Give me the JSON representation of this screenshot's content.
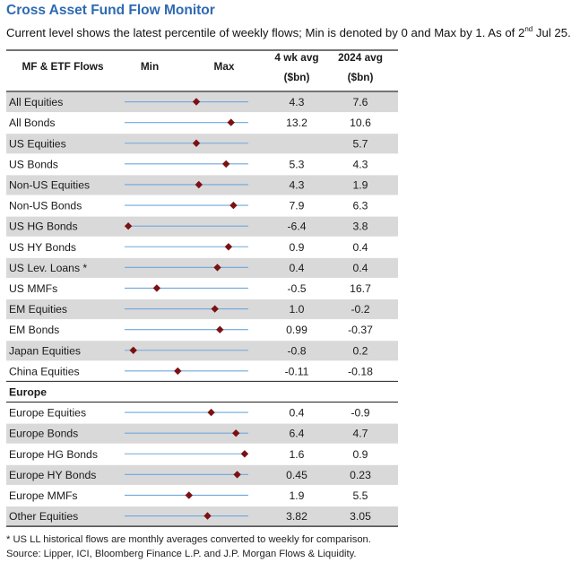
{
  "title": "Cross Asset Fund Flow Monitor",
  "subtitle": {
    "pre": "Current level shows the latest percentile of weekly flows; Min is denoted by 0 and Max by 1. As of 2",
    "sup": "nd",
    "post": " Jul 25."
  },
  "footnotes": [
    "* US LL historical flows are monthly averages converted to weekly for comparison.",
    "Source: Lipper, ICI, Bloomberg Finance L.P. and J.P. Morgan Flows & Liquidity."
  ],
  "chart_data": {
    "type": "table",
    "headers": {
      "label": "MF & ETF Flows",
      "min": "Min",
      "max": "Max",
      "avg4_line1": "4 wk avg",
      "avg4_line2": "($bn)",
      "avg2024_line1": "2024 avg",
      "avg2024_line2": "($bn)"
    },
    "marker_range": [
      0,
      1
    ],
    "colors": {
      "marker": "#7b1114",
      "line": "#6fa8dc",
      "shaded_row": "#d9d9d9",
      "title": "#2e6ab1"
    },
    "rows": [
      {
        "kind": "data",
        "label": "All Equities",
        "percentile": 0.58,
        "avg4wk": "4.3",
        "avg2024": "7.6"
      },
      {
        "kind": "data",
        "label": "All Bonds",
        "percentile": 0.86,
        "avg4wk": "13.2",
        "avg2024": "10.6"
      },
      {
        "kind": "data",
        "label": "US Equities",
        "percentile": 0.58,
        "avg4wk": "",
        "avg2024": "5.7"
      },
      {
        "kind": "data",
        "label": "US Bonds",
        "percentile": 0.82,
        "avg4wk": "5.3",
        "avg2024": "4.3"
      },
      {
        "kind": "data",
        "label": "Non-US Equities",
        "percentile": 0.6,
        "avg4wk": "4.3",
        "avg2024": "1.9"
      },
      {
        "kind": "data",
        "label": "Non-US Bonds",
        "percentile": 0.88,
        "avg4wk": "7.9",
        "avg2024": "6.3"
      },
      {
        "kind": "data",
        "label": "US HG Bonds",
        "percentile": 0.03,
        "avg4wk": "-6.4",
        "avg2024": "3.8"
      },
      {
        "kind": "data",
        "label": "US HY Bonds",
        "percentile": 0.84,
        "avg4wk": "0.9",
        "avg2024": "0.4"
      },
      {
        "kind": "data",
        "label": "US Lev. Loans *",
        "percentile": 0.75,
        "avg4wk": "0.4",
        "avg2024": "0.4"
      },
      {
        "kind": "data",
        "label": "US MMFs",
        "percentile": 0.26,
        "avg4wk": "-0.5",
        "avg2024": "16.7"
      },
      {
        "kind": "data",
        "label": "EM Equities",
        "percentile": 0.73,
        "avg4wk": "1.0",
        "avg2024": "-0.2"
      },
      {
        "kind": "data",
        "label": "EM Bonds",
        "percentile": 0.77,
        "avg4wk": "0.99",
        "avg2024": "-0.37"
      },
      {
        "kind": "data",
        "label": "Japan Equities",
        "percentile": 0.07,
        "avg4wk": "-0.8",
        "avg2024": "0.2"
      },
      {
        "kind": "data",
        "label": "China Equities",
        "percentile": 0.43,
        "avg4wk": "-0.11",
        "avg2024": "-0.18"
      },
      {
        "kind": "section",
        "label": "Europe"
      },
      {
        "kind": "data",
        "label": "Europe Equities",
        "percentile": 0.7,
        "avg4wk": "0.4",
        "avg2024": "-0.9"
      },
      {
        "kind": "data",
        "label": "Europe Bonds",
        "percentile": 0.9,
        "avg4wk": "6.4",
        "avg2024": "4.7"
      },
      {
        "kind": "data",
        "label": "Europe HG Bonds",
        "percentile": 0.97,
        "avg4wk": "1.6",
        "avg2024": "0.9"
      },
      {
        "kind": "data",
        "label": "Europe HY Bonds",
        "percentile": 0.91,
        "avg4wk": "0.45",
        "avg2024": "0.23"
      },
      {
        "kind": "data",
        "label": "Europe MMFs",
        "percentile": 0.52,
        "avg4wk": "1.9",
        "avg2024": "5.5"
      },
      {
        "kind": "data",
        "label": "Other Equities",
        "percentile": 0.67,
        "avg4wk": "3.82",
        "avg2024": "3.05"
      }
    ]
  }
}
